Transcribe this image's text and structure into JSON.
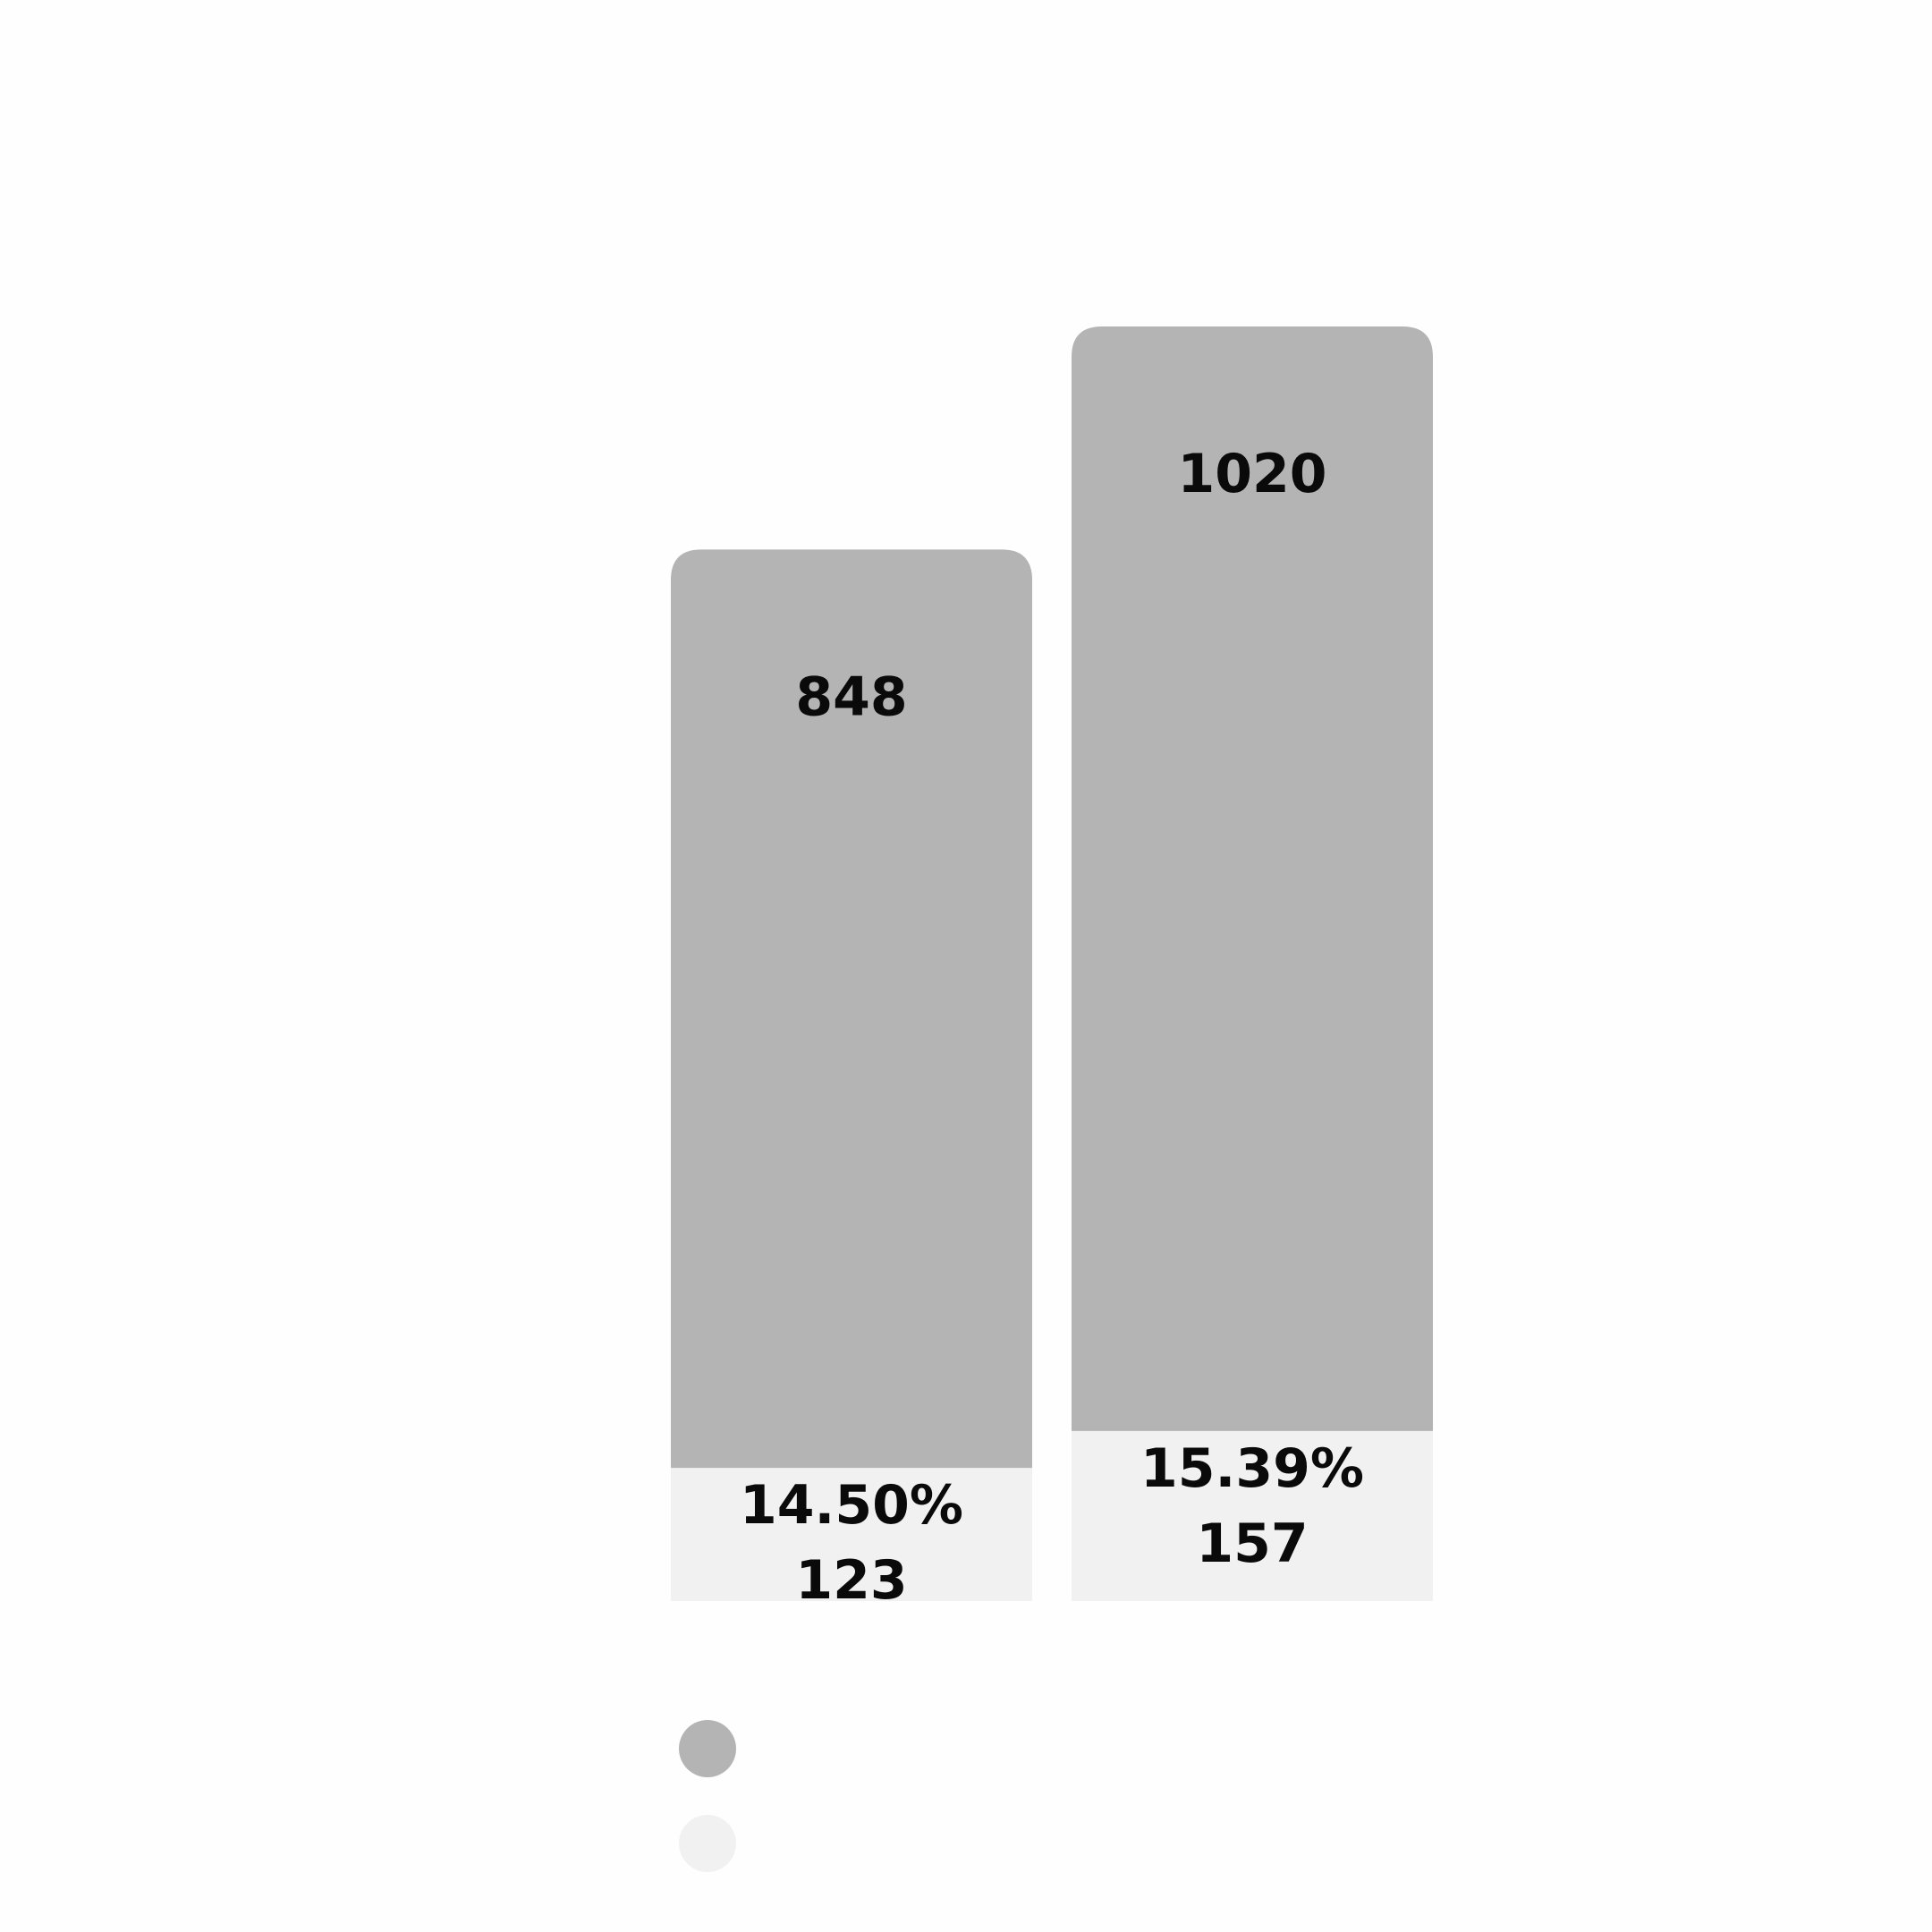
{
  "chart_data": {
    "type": "bar",
    "stacked": true,
    "categories": [
      "",
      ""
    ],
    "series": [
      {
        "name": "",
        "color": "#f1f1f1",
        "values": [
          123,
          157
        ],
        "percent_labels": [
          "14.50%",
          "15.39%"
        ]
      },
      {
        "name": "",
        "color": "#b4b4b4",
        "values": [
          848,
          1020
        ]
      }
    ],
    "title": "",
    "xlabel": "",
    "ylabel": "",
    "ylim": [
      0,
      1177
    ],
    "grid": false,
    "legend": "bottom-left"
  }
}
